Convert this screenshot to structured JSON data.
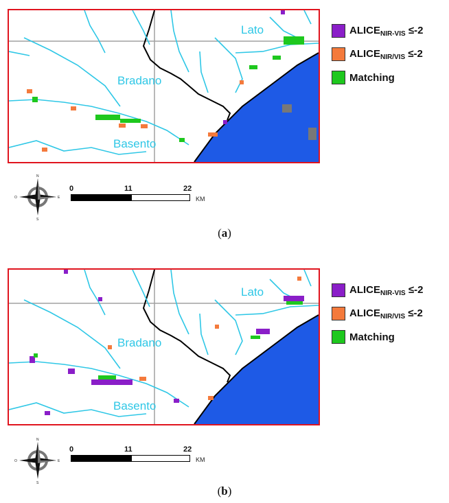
{
  "panels": [
    {
      "id": "a",
      "caption_open": "(",
      "caption_letter": "a",
      "caption_close": ")",
      "map_labels": {
        "lato": "Lato",
        "bradano": "Bradano",
        "basento": "Basento"
      },
      "legend": [
        {
          "base": "ALICE",
          "sub": "NIR-VIS",
          "suffix": " ≤-2",
          "color": "#8a1ec8"
        },
        {
          "base": "ALICE",
          "sub": "NIR/VIS",
          "suffix": " ≤-2",
          "color": "#f47a3c"
        },
        {
          "base": "Matching",
          "sub": "",
          "suffix": "",
          "color": "#1ec81e"
        }
      ],
      "scalebar": {
        "ticks": [
          "0",
          "11",
          "22"
        ],
        "unit": "KM"
      },
      "compass": {
        "n": "N",
        "s": "S",
        "e": "E",
        "w": "O"
      }
    },
    {
      "id": "b",
      "caption_open": "(",
      "caption_letter": "b",
      "caption_close": ")",
      "map_labels": {
        "lato": "Lato",
        "bradano": "Bradano",
        "basento": "Basento"
      },
      "legend": [
        {
          "base": "ALICE",
          "sub": "NIR-VIS",
          "suffix": " ≤-2",
          "color": "#8a1ec8"
        },
        {
          "base": "ALICE",
          "sub": "NIR/VIS",
          "suffix": " ≤-2",
          "color": "#f47a3c"
        },
        {
          "base": "Matching",
          "sub": "",
          "suffix": "",
          "color": "#1ec81e"
        }
      ],
      "scalebar": {
        "ticks": [
          "0",
          "11",
          "22"
        ],
        "unit": "KM"
      },
      "compass": {
        "n": "N",
        "s": "S",
        "e": "E",
        "w": "O"
      }
    }
  ],
  "colors": {
    "frame": "#e0141e",
    "river": "#2ec7e6",
    "sea": "#1e5ae6",
    "coast": "#000000",
    "boundary": "#000000",
    "grid": "#a0a0a0",
    "cloud": "#787878"
  }
}
